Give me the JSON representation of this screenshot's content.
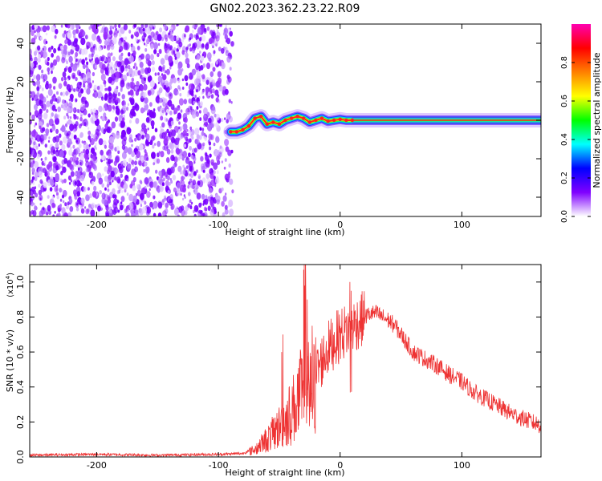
{
  "title": "GN02.2023.362.23.22.R09",
  "chart_data": [
    {
      "type": "heatmap",
      "xlabel": "Height of straight line (km)",
      "ylabel": "Frequency (Hz)",
      "xlim": [
        -255,
        165
      ],
      "ylim": [
        -50,
        50
      ],
      "x_ticks": [
        -200,
        -100,
        0,
        100
      ],
      "x_tick_labels": [
        "-200",
        "-100",
        "0",
        "100"
      ],
      "y_ticks": [
        -40,
        -20,
        0,
        20,
        40
      ],
      "y_tick_labels": [
        "-40",
        "-20",
        "0",
        "20",
        "40"
      ],
      "grid": false,
      "noise_region_x": [
        -255,
        -88
      ],
      "signal_track": {
        "x": [
          -90,
          -85,
          -80,
          -75,
          -70,
          -65,
          -60,
          -55,
          -50,
          -45,
          -40,
          -35,
          -30,
          -25,
          -20,
          -15,
          -10,
          -5,
          0,
          5,
          10,
          50,
          100,
          165
        ],
        "y": [
          -6,
          -6,
          -5,
          -3,
          1,
          2,
          -2,
          -1,
          -2,
          0,
          1,
          2,
          1,
          -1,
          0,
          1,
          -0.5,
          0,
          0.5,
          0,
          0,
          0,
          0,
          0
        ]
      },
      "colorbar": {
        "label": "Normalized spectral amplitude",
        "range": [
          0,
          1
        ],
        "ticks": [
          0.0,
          0.2,
          0.4,
          0.6,
          0.8
        ],
        "tick_labels": [
          "0.0",
          "0.2",
          "0.4",
          "0.6",
          "0.8"
        ],
        "colors": [
          "#ffffff",
          "#8000ff",
          "#0000ff",
          "#00ffff",
          "#00ff00",
          "#ffff00",
          "#ff8000",
          "#ff0000",
          "#ff00b0"
        ]
      }
    },
    {
      "type": "line",
      "xlabel": "Height of straight line (km)",
      "ylabel": "SNR (10 * v/v)",
      "y_scale_label": "(x10",
      "y_scale_exp": "4",
      "xlim": [
        -255,
        165
      ],
      "ylim": [
        0,
        1.1
      ],
      "x_ticks": [
        -200,
        -100,
        0,
        100
      ],
      "x_tick_labels": [
        "-200",
        "-100",
        "0",
        "100"
      ],
      "y_ticks": [
        0.0,
        0.2,
        0.4,
        0.6,
        0.8,
        1.0
      ],
      "y_tick_labels": [
        "0.0",
        "0.2",
        "0.4",
        "0.6",
        "0.8",
        "1.0"
      ],
      "grid": false,
      "series": [
        {
          "color": "#ee3333",
          "x": [
            -255,
            -200,
            -150,
            -100,
            -80,
            -70,
            -60,
            -50,
            -45,
            -40,
            -35,
            -30,
            -28,
            -25,
            -22,
            -20,
            -15,
            -10,
            -5,
            0,
            5,
            10,
            15,
            20,
            25,
            30,
            35,
            40,
            45,
            50,
            60,
            70,
            80,
            90,
            100,
            110,
            120,
            130,
            140,
            150,
            165
          ],
          "y": [
            0.01,
            0.015,
            0.01,
            0.015,
            0.02,
            0.05,
            0.12,
            0.2,
            0.25,
            0.3,
            0.38,
            0.45,
            0.95,
            0.4,
            0.45,
            0.48,
            0.55,
            0.62,
            0.66,
            0.7,
            0.72,
            0.75,
            0.77,
            0.8,
            0.82,
            0.82,
            0.8,
            0.78,
            0.75,
            0.7,
            0.6,
            0.56,
            0.52,
            0.47,
            0.43,
            0.37,
            0.33,
            0.29,
            0.25,
            0.22,
            0.18
          ]
        }
      ],
      "spikes": {
        "x": [
          -48,
          -47,
          -30,
          -29.5,
          -29,
          -27,
          -23,
          8,
          9
        ],
        "y": [
          0.6,
          0.7,
          1.07,
          1.1,
          0.98,
          0.9,
          0.75,
          1.0,
          0.95
        ]
      }
    }
  ]
}
